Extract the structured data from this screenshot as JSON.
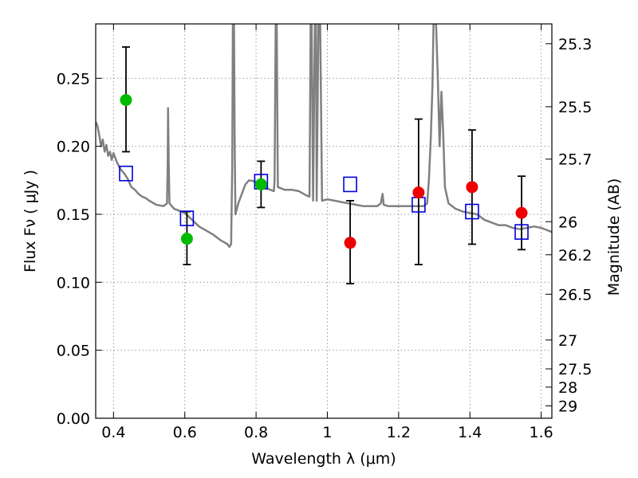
{
  "chart_data": {
    "type": "scatter",
    "xlabel": "Wavelength  λ (μm)",
    "ylabel": "Flux  Fν  ( μJy )",
    "ylabel_right": "Magnitude (AB)",
    "xlim": [
      0.35,
      1.63
    ],
    "ylim": [
      0.0,
      0.29
    ],
    "grid": true,
    "x_ticks": [
      {
        "value": 0.4,
        "label": "0.4"
      },
      {
        "value": 0.6,
        "label": "0.6"
      },
      {
        "value": 0.8,
        "label": "0.8"
      },
      {
        "value": 1.0,
        "label": "1"
      },
      {
        "value": 1.2,
        "label": "1.2"
      },
      {
        "value": 1.4,
        "label": "1.4"
      },
      {
        "value": 1.6,
        "label": "1.6"
      }
    ],
    "y_ticks": [
      {
        "value": 0.0,
        "label": "0.00"
      },
      {
        "value": 0.05,
        "label": "0.05"
      },
      {
        "value": 0.1,
        "label": "0.10"
      },
      {
        "value": 0.15,
        "label": "0.15"
      },
      {
        "value": 0.2,
        "label": "0.20"
      },
      {
        "value": 0.25,
        "label": "0.25"
      }
    ],
    "right_ticks": [
      {
        "mag": 25.3,
        "label": "25.3"
      },
      {
        "mag": 25.5,
        "label": "25.5"
      },
      {
        "mag": 25.7,
        "label": "25.7"
      },
      {
        "mag": 26.0,
        "label": "26"
      },
      {
        "mag": 26.2,
        "label": "26.2"
      },
      {
        "mag": 26.5,
        "label": "26.5"
      },
      {
        "mag": 27.0,
        "label": "27"
      },
      {
        "mag": 27.5,
        "label": "27.5"
      },
      {
        "mag": 28.0,
        "label": "28"
      },
      {
        "mag": 29.0,
        "label": "29"
      }
    ],
    "colors": {
      "green": "#00bb00",
      "red": "#ee0000",
      "model_box": "#0000dd",
      "template": "#808080",
      "errorbar": "#000000",
      "grid": "#9a9a9a"
    },
    "series": [
      {
        "kind": "observed",
        "color": "green",
        "points": [
          {
            "x": 0.435,
            "y": 0.234,
            "err_low": 0.196,
            "err_high": 0.273
          },
          {
            "x": 0.606,
            "y": 0.132,
            "err_low": 0.113,
            "err_high": 0.152
          },
          {
            "x": 0.814,
            "y": 0.172,
            "err_low": 0.155,
            "err_high": 0.189
          }
        ]
      },
      {
        "kind": "observed",
        "color": "red",
        "points": [
          {
            "x": 1.064,
            "y": 0.129,
            "err_low": 0.099,
            "err_high": 0.16
          },
          {
            "x": 1.256,
            "y": 0.166,
            "err_low": 0.113,
            "err_high": 0.22
          },
          {
            "x": 1.406,
            "y": 0.17,
            "err_low": 0.128,
            "err_high": 0.212
          },
          {
            "x": 1.545,
            "y": 0.151,
            "err_low": 0.124,
            "err_high": 0.178
          }
        ]
      },
      {
        "kind": "model",
        "color": "model_box",
        "points": [
          {
            "x": 0.435,
            "y": 0.18
          },
          {
            "x": 0.606,
            "y": 0.147
          },
          {
            "x": 0.814,
            "y": 0.174
          },
          {
            "x": 1.064,
            "y": 0.172
          },
          {
            "x": 1.256,
            "y": 0.157
          },
          {
            "x": 1.406,
            "y": 0.152
          },
          {
            "x": 1.545,
            "y": 0.137
          }
        ]
      }
    ],
    "template_spectrum": [
      [
        0.35,
        0.218
      ],
      [
        0.355,
        0.215
      ],
      [
        0.36,
        0.208
      ],
      [
        0.365,
        0.2
      ],
      [
        0.37,
        0.205
      ],
      [
        0.375,
        0.196
      ],
      [
        0.38,
        0.201
      ],
      [
        0.385,
        0.193
      ],
      [
        0.39,
        0.196
      ],
      [
        0.395,
        0.19
      ],
      [
        0.4,
        0.195
      ],
      [
        0.41,
        0.188
      ],
      [
        0.42,
        0.183
      ],
      [
        0.43,
        0.18
      ],
      [
        0.44,
        0.176
      ],
      [
        0.45,
        0.17
      ],
      [
        0.46,
        0.168
      ],
      [
        0.47,
        0.165
      ],
      [
        0.48,
        0.163
      ],
      [
        0.49,
        0.162
      ],
      [
        0.5,
        0.16
      ],
      [
        0.52,
        0.157
      ],
      [
        0.54,
        0.156
      ],
      [
        0.55,
        0.158
      ],
      [
        0.552,
        0.188
      ],
      [
        0.553,
        0.228
      ],
      [
        0.555,
        0.188
      ],
      [
        0.557,
        0.158
      ],
      [
        0.57,
        0.154
      ],
      [
        0.6,
        0.151
      ],
      [
        0.62,
        0.146
      ],
      [
        0.64,
        0.141
      ],
      [
        0.66,
        0.138
      ],
      [
        0.68,
        0.135
      ],
      [
        0.7,
        0.131
      ],
      [
        0.72,
        0.128
      ],
      [
        0.725,
        0.126
      ],
      [
        0.73,
        0.128
      ],
      [
        0.733,
        0.185
      ],
      [
        0.735,
        0.29
      ],
      [
        0.738,
        0.29
      ],
      [
        0.74,
        0.2
      ],
      [
        0.742,
        0.15
      ],
      [
        0.75,
        0.158
      ],
      [
        0.76,
        0.165
      ],
      [
        0.77,
        0.172
      ],
      [
        0.78,
        0.175
      ],
      [
        0.8,
        0.174
      ],
      [
        0.82,
        0.172
      ],
      [
        0.83,
        0.169
      ],
      [
        0.84,
        0.168
      ],
      [
        0.85,
        0.167
      ],
      [
        0.852,
        0.175
      ],
      [
        0.855,
        0.29
      ],
      [
        0.858,
        0.29
      ],
      [
        0.861,
        0.17
      ],
      [
        0.88,
        0.168
      ],
      [
        0.9,
        0.168
      ],
      [
        0.92,
        0.167
      ],
      [
        0.94,
        0.164
      ],
      [
        0.95,
        0.163
      ],
      [
        0.953,
        0.29
      ],
      [
        0.956,
        0.29
      ],
      [
        0.96,
        0.16
      ],
      [
        0.965,
        0.29
      ],
      [
        0.968,
        0.29
      ],
      [
        0.97,
        0.16
      ],
      [
        0.975,
        0.29
      ],
      [
        0.98,
        0.29
      ],
      [
        0.985,
        0.16
      ],
      [
        1.0,
        0.161
      ],
      [
        1.02,
        0.16
      ],
      [
        1.04,
        0.159
      ],
      [
        1.06,
        0.158
      ],
      [
        1.08,
        0.157
      ],
      [
        1.1,
        0.156
      ],
      [
        1.12,
        0.156
      ],
      [
        1.14,
        0.156
      ],
      [
        1.15,
        0.158
      ],
      [
        1.155,
        0.165
      ],
      [
        1.158,
        0.157
      ],
      [
        1.17,
        0.156
      ],
      [
        1.2,
        0.156
      ],
      [
        1.23,
        0.156
      ],
      [
        1.25,
        0.156
      ],
      [
        1.27,
        0.156
      ],
      [
        1.28,
        0.158
      ],
      [
        1.285,
        0.175
      ],
      [
        1.29,
        0.205
      ],
      [
        1.295,
        0.245
      ],
      [
        1.298,
        0.29
      ],
      [
        1.305,
        0.29
      ],
      [
        1.31,
        0.25
      ],
      [
        1.315,
        0.2
      ],
      [
        1.32,
        0.24
      ],
      [
        1.325,
        0.21
      ],
      [
        1.33,
        0.17
      ],
      [
        1.34,
        0.158
      ],
      [
        1.36,
        0.154
      ],
      [
        1.38,
        0.152
      ],
      [
        1.4,
        0.151
      ],
      [
        1.42,
        0.15
      ],
      [
        1.44,
        0.146
      ],
      [
        1.46,
        0.144
      ],
      [
        1.48,
        0.142
      ],
      [
        1.5,
        0.142
      ],
      [
        1.52,
        0.14
      ],
      [
        1.54,
        0.139
      ],
      [
        1.56,
        0.14
      ],
      [
        1.58,
        0.141
      ],
      [
        1.6,
        0.14
      ],
      [
        1.63,
        0.137
      ]
    ]
  }
}
